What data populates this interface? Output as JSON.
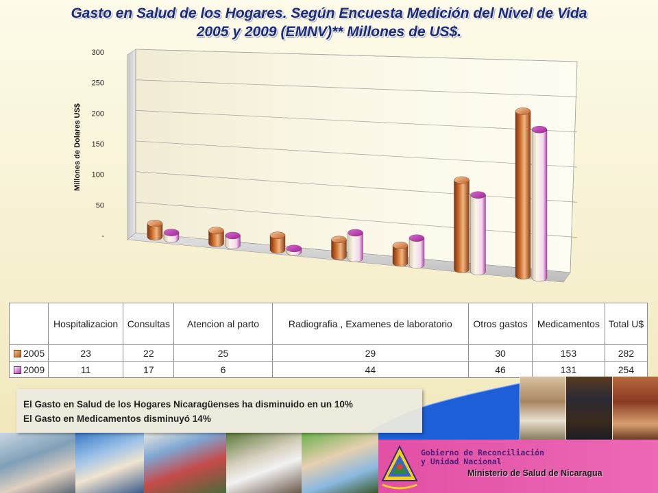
{
  "title": {
    "line1": "Gasto en Salud de los Hogares. Según  Encuesta Medición del Nivel de Vida",
    "line2": "2005 y 2009 (EMNV)** Millones de US$."
  },
  "chart_data": {
    "type": "bar",
    "ylabel": "Millones de Dolares  US$",
    "ylim": [
      0,
      300
    ],
    "yticks": [
      "-",
      "50",
      "100",
      "150",
      "200",
      "250",
      "300"
    ],
    "categories": [
      "Hospitalizacion",
      "Consultas",
      "Atencion al parto",
      "Radiografia , Examenes de laboratorio",
      "Otros gastos",
      "Medicamentos",
      "Total U$"
    ],
    "series": [
      {
        "name": "2005",
        "values": [
          23,
          22,
          25,
          29,
          30,
          153,
          282
        ],
        "color": "#c8692a"
      },
      {
        "name": "2009",
        "values": [
          11,
          17,
          6,
          44,
          46,
          131,
          254
        ],
        "color": "#c13cb7"
      }
    ],
    "grid": true,
    "legend": "table"
  },
  "table": {
    "headers": [
      "Hospitalizacion",
      "Consultas",
      "Atencion al parto",
      "Radiografia , Examenes de laboratorio",
      "Otros gastos",
      "Medicamentos",
      "Total U$"
    ],
    "rows": [
      {
        "label": "2005",
        "cells": [
          "23",
          "22",
          "25",
          "29",
          "30",
          "153",
          "282"
        ]
      },
      {
        "label": "2009",
        "cells": [
          "11",
          "17",
          "6",
          "44",
          "46",
          "131",
          "254"
        ]
      }
    ]
  },
  "note": {
    "line1": "El Gasto en Salud de los Hogares Nicaragüenses ha disminuido en un 10%",
    "line2": "El Gasto en Medicamentos disminuyó 14%"
  },
  "banner": {
    "gov_line1": "Gobierno de Reconciliación",
    "gov_line2": "y Unidad Nacional",
    "ministry": "Ministerio de Salud de Nicaragua"
  }
}
